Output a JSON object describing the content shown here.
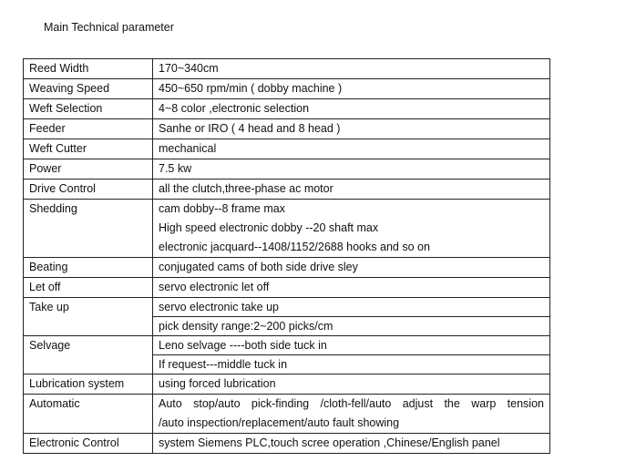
{
  "title": "Main Technical parameter",
  "rows": [
    {
      "label": "Reed Width",
      "values": [
        "170~340cm"
      ]
    },
    {
      "label": "Weaving Speed",
      "values": [
        "450~650 rpm/min ( dobby machine )"
      ]
    },
    {
      "label": "Weft Selection",
      "values": [
        "4~8 color ,electronic selection"
      ]
    },
    {
      "label": "Feeder",
      "values": [
        "Sanhe or IRO ( 4 head and 8 head )"
      ]
    },
    {
      "label": "Weft Cutter",
      "values": [
        "mechanical"
      ]
    },
    {
      "label": "Power",
      "values": [
        "7.5 kw"
      ]
    },
    {
      "label": "Drive Control",
      "values": [
        "all the clutch,three-phase ac motor"
      ]
    },
    {
      "label": "Shedding",
      "values": [
        "cam dobby--8 frame max",
        "High speed electronic dobby --20 shaft max",
        "electronic jacquard--1408/1152/2688 hooks and so on"
      ]
    },
    {
      "label": "Beating",
      "values": [
        "conjugated cams of both side drive sley"
      ]
    },
    {
      "label": "Let off",
      "values": [
        "servo electronic let off"
      ]
    },
    {
      "label": "Take up",
      "values": [
        "servo electronic take up",
        "pick density range:2~200 picks/cm"
      ]
    },
    {
      "label": "Selvage",
      "values": [
        "Leno selvage ----both side tuck in",
        "If request---middle tuck in"
      ]
    },
    {
      "label": "Lubrication system",
      "values": [
        "using forced lubrication"
      ]
    },
    {
      "label": "Automatic",
      "values": [
        "Auto stop/auto pick-finding /cloth-fell/auto adjust the warp tension",
        "/auto inspection/replacement/auto fault showing"
      ]
    },
    {
      "label": "Electronic Control",
      "values": [
        "system Siemens PLC,touch scree operation ,Chinese/English panel"
      ]
    }
  ]
}
